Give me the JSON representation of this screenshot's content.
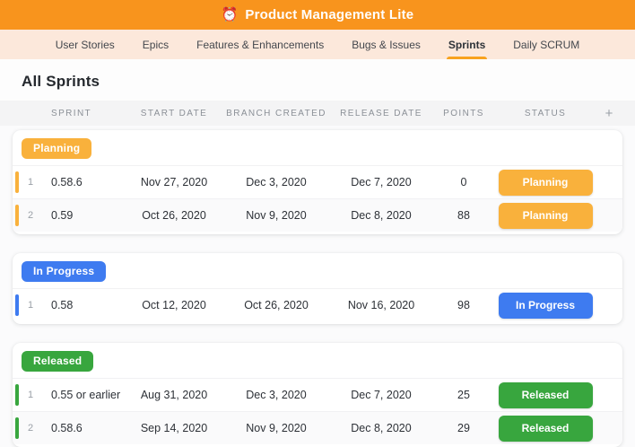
{
  "app": {
    "title": "Product Management Lite",
    "icon": "⏰"
  },
  "colors": {
    "header_bg": "#F8941D",
    "nav_bg": "#FCE8DB",
    "active_tab_underline": "#F8A21E",
    "planning": "#F9B13C",
    "in_progress": "#3E7BF0",
    "released": "#38A63E"
  },
  "nav": {
    "tabs": [
      {
        "label": "User Stories",
        "active": false
      },
      {
        "label": "Epics",
        "active": false
      },
      {
        "label": "Features & Enhancements",
        "active": false
      },
      {
        "label": "Bugs & Issues",
        "active": false
      },
      {
        "label": "Sprints",
        "active": true
      },
      {
        "label": "Daily SCRUM",
        "active": false
      }
    ]
  },
  "page": {
    "title": "All Sprints"
  },
  "table": {
    "headers": {
      "sprint": "SPRINT",
      "start_date": "START DATE",
      "branch_created": "BRANCH CREATED",
      "release_date": "RELEASE DATE",
      "points": "POINTS",
      "status": "STATUS"
    },
    "add_column_label": "+",
    "groups": [
      {
        "name": "Planning",
        "color": "#F9B13C",
        "rows": [
          {
            "num": "1",
            "sprint": "0.58.6",
            "start_date": "Nov 27, 2020",
            "branch_created": "Dec 3, 2020",
            "release_date": "Dec 7, 2020",
            "points": "0",
            "status": "Planning"
          },
          {
            "num": "2",
            "sprint": "0.59",
            "start_date": "Oct 26, 2020",
            "branch_created": "Nov 9, 2020",
            "release_date": "Dec 8, 2020",
            "points": "88",
            "status": "Planning"
          }
        ]
      },
      {
        "name": "In Progress",
        "color": "#3E7BF0",
        "rows": [
          {
            "num": "1",
            "sprint": "0.58",
            "start_date": "Oct 12, 2020",
            "branch_created": "Oct 26, 2020",
            "release_date": "Nov 16, 2020",
            "points": "98",
            "status": "In Progress"
          }
        ]
      },
      {
        "name": "Released",
        "color": "#38A63E",
        "rows": [
          {
            "num": "1",
            "sprint": "0.55 or earlier",
            "start_date": "Aug 31, 2020",
            "branch_created": "Dec 3, 2020",
            "release_date": "Dec 7, 2020",
            "points": "25",
            "status": "Released"
          },
          {
            "num": "2",
            "sprint": "0.58.6",
            "start_date": "Sep 14, 2020",
            "branch_created": "Nov 9, 2020",
            "release_date": "Dec 8, 2020",
            "points": "29",
            "status": "Released"
          }
        ]
      }
    ]
  }
}
